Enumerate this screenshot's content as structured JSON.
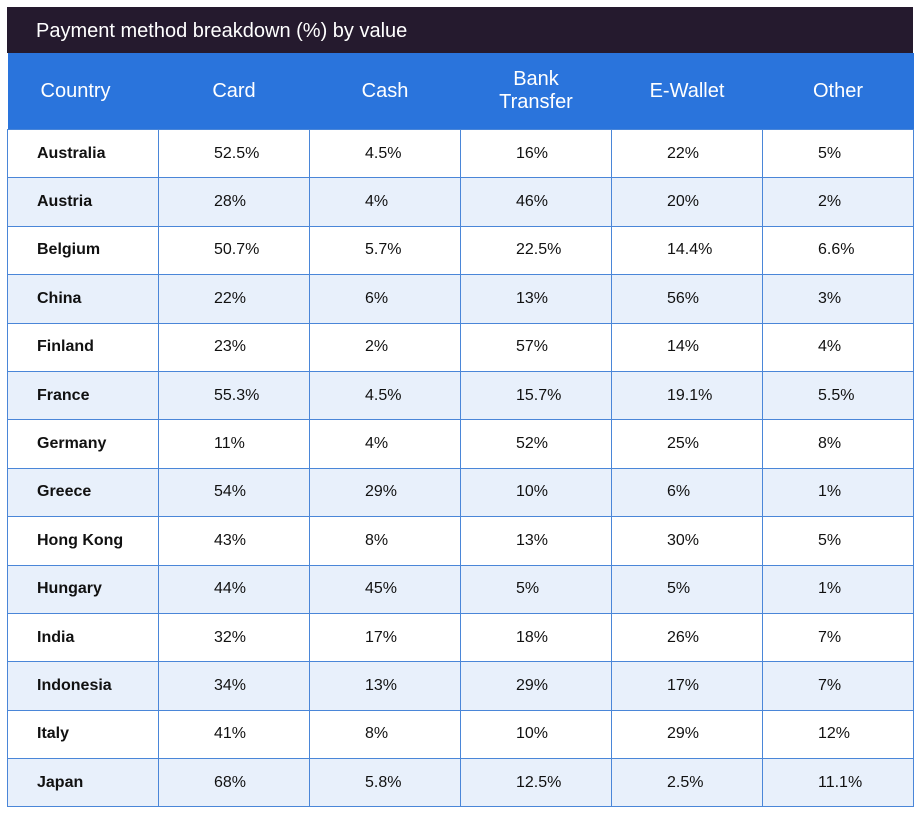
{
  "title": "Payment method breakdown (%) by value",
  "headers": [
    "Country",
    "Card",
    "Cash",
    "Bank\nTransfer",
    "E-Wallet",
    "Other"
  ],
  "rows": [
    [
      "Australia",
      "52.5%",
      "4.5%",
      "16%",
      "22%",
      "5%"
    ],
    [
      "Austria",
      "28%",
      "4%",
      "46%",
      "20%",
      "2%"
    ],
    [
      "Belgium",
      "50.7%",
      "5.7%",
      "22.5%",
      "14.4%",
      "6.6%"
    ],
    [
      "China",
      "22%",
      "6%",
      "13%",
      "56%",
      "3%"
    ],
    [
      "Finland",
      "23%",
      "2%",
      "57%",
      "14%",
      "4%"
    ],
    [
      "France",
      "55.3%",
      "4.5%",
      "15.7%",
      "19.1%",
      "5.5%"
    ],
    [
      "Germany",
      "11%",
      "4%",
      "52%",
      "25%",
      "8%"
    ],
    [
      "Greece",
      "54%",
      "29%",
      "10%",
      "6%",
      "1%"
    ],
    [
      "Hong Kong",
      "43%",
      "8%",
      "13%",
      "30%",
      "5%"
    ],
    [
      "Hungary",
      "44%",
      "45%",
      "5%",
      "5%",
      "1%"
    ],
    [
      "India",
      "32%",
      "17%",
      "18%",
      "26%",
      "7%"
    ],
    [
      "Indonesia",
      "34%",
      "13%",
      "29%",
      "17%",
      "7%"
    ],
    [
      "Italy",
      "41%",
      "8%",
      "10%",
      "29%",
      "12%"
    ],
    [
      "Japan",
      "68%",
      "5.8%",
      "12.5%",
      "2.5%",
      "11.1%"
    ]
  ],
  "colors": {
    "title_bg": "#251a2e",
    "header_bg": "#2a74dc",
    "border": "#4a86d8",
    "alt_row": "#e8f0fb"
  }
}
